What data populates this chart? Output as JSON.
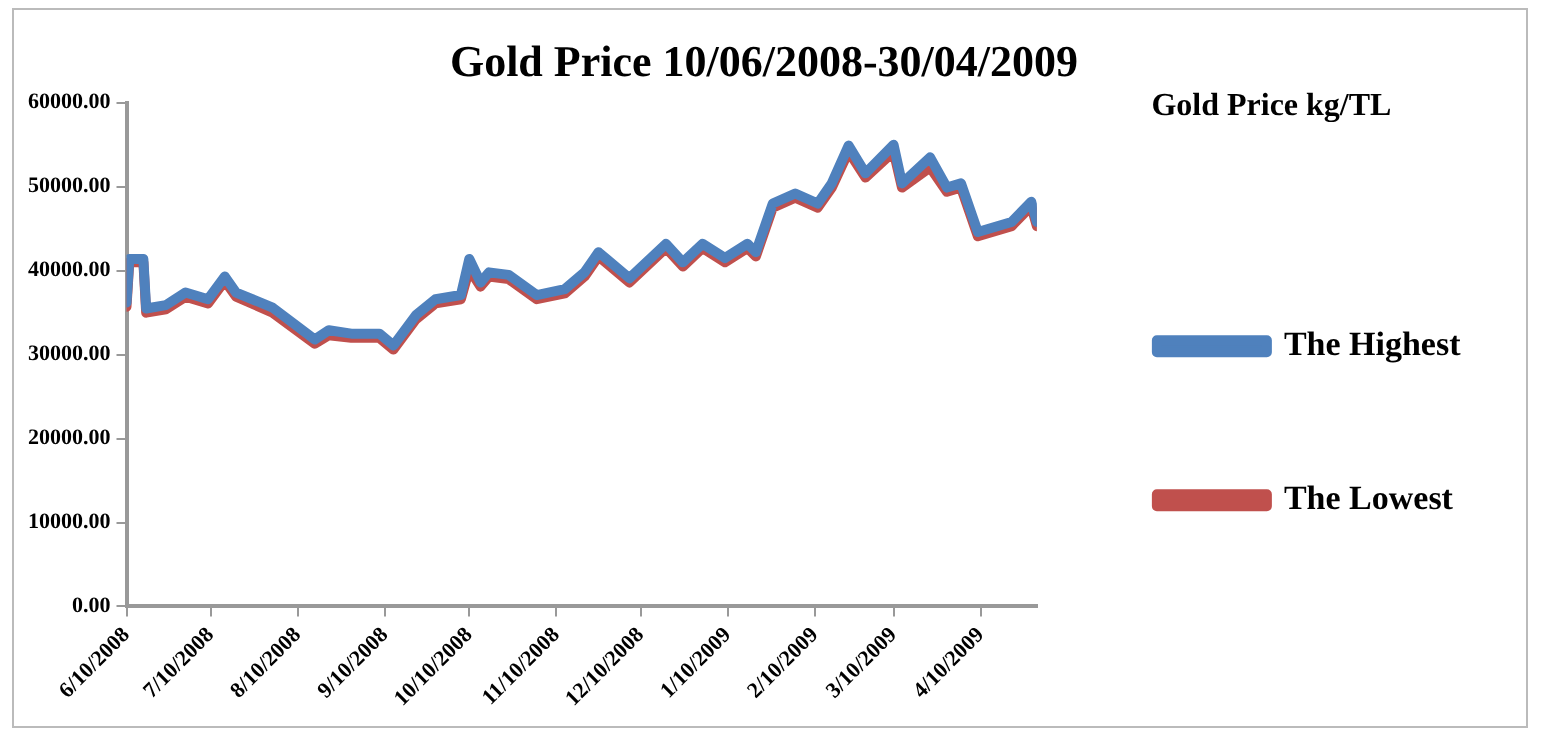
{
  "chart_data": {
    "type": "line",
    "title": "Gold Price 10/06/2008-30/04/2009",
    "legend_title": "Gold Price kg/TL",
    "legend": "right",
    "grid": false,
    "marker": "none",
    "line_style": "solid",
    "x": [
      "2008-06-10",
      "2008-06-11",
      "2008-06-16",
      "2008-06-17",
      "2008-06-24",
      "2008-07-01",
      "2008-07-09",
      "2008-07-15",
      "2008-07-19",
      "2008-08-01",
      "2008-08-16",
      "2008-08-21",
      "2008-08-29",
      "2008-09-08",
      "2008-09-13",
      "2008-09-21",
      "2008-09-28",
      "2008-10-07",
      "2008-10-10",
      "2008-10-14",
      "2008-10-17",
      "2008-10-24",
      "2008-11-03",
      "2008-11-13",
      "2008-11-20",
      "2008-11-25",
      "2008-12-06",
      "2008-12-19",
      "2008-12-25",
      "2009-01-01",
      "2009-01-09",
      "2009-01-17",
      "2009-01-20",
      "2009-01-26",
      "2009-02-03",
      "2009-02-11",
      "2009-02-16",
      "2009-02-22",
      "2009-02-28",
      "2009-03-10",
      "2009-03-13",
      "2009-03-23",
      "2009-03-29",
      "2009-04-03",
      "2009-04-09",
      "2009-04-21",
      "2009-04-28",
      "2009-04-30"
    ],
    "xlim": [
      "2008-06-10",
      "2009-04-30"
    ],
    "xticks": [
      {
        "value": "2008-06-10",
        "label": "6/10/2008"
      },
      {
        "value": "2008-07-10",
        "label": "7/10/2008"
      },
      {
        "value": "2008-08-10",
        "label": "8/10/2008"
      },
      {
        "value": "2008-09-10",
        "label": "9/10/2008"
      },
      {
        "value": "2008-10-10",
        "label": "10/10/2008"
      },
      {
        "value": "2008-11-10",
        "label": "11/10/2008"
      },
      {
        "value": "2008-12-10",
        "label": "12/10/2008"
      },
      {
        "value": "2009-01-10",
        "label": "1/10/2009"
      },
      {
        "value": "2009-02-10",
        "label": "2/10/2009"
      },
      {
        "value": "2009-03-10",
        "label": "3/10/2009"
      },
      {
        "value": "2009-04-10",
        "label": "4/10/2009"
      }
    ],
    "ylim": [
      0,
      60000
    ],
    "yticks": [
      {
        "value": 0,
        "label": "0.00"
      },
      {
        "value": 10000,
        "label": "10000.00"
      },
      {
        "value": 20000,
        "label": "20000.00"
      },
      {
        "value": 30000,
        "label": "30000.00"
      },
      {
        "value": 40000,
        "label": "40000.00"
      },
      {
        "value": 50000,
        "label": "50000.00"
      },
      {
        "value": 60000,
        "label": "60000.00"
      }
    ],
    "series": [
      {
        "name": "The Highest",
        "color": "#4f81bd",
        "values": [
          36200,
          41400,
          41400,
          35500,
          35900,
          37400,
          36600,
          39300,
          37400,
          35600,
          31800,
          32900,
          32500,
          32500,
          31100,
          34700,
          36600,
          37100,
          41400,
          38600,
          39800,
          39500,
          37100,
          37800,
          39800,
          42200,
          39100,
          43200,
          41000,
          43200,
          41500,
          43200,
          42200,
          48000,
          49200,
          48000,
          50400,
          54900,
          51600,
          55000,
          50400,
          53500,
          49900,
          50400,
          44600,
          45800,
          48200,
          45800
        ]
      },
      {
        "name": "The Lowest",
        "color": "#c0504d",
        "values": [
          35700,
          41000,
          41000,
          35000,
          35400,
          36900,
          36100,
          38800,
          36900,
          35000,
          31300,
          32300,
          32000,
          32000,
          30600,
          34200,
          36100,
          36600,
          40200,
          38100,
          39300,
          39000,
          36600,
          37300,
          39300,
          41700,
          38600,
          42700,
          40500,
          42700,
          41000,
          42700,
          41700,
          47500,
          48700,
          47500,
          49900,
          54200,
          51100,
          54200,
          49900,
          52300,
          49400,
          49900,
          44100,
          45300,
          47700,
          45300
        ]
      }
    ]
  }
}
